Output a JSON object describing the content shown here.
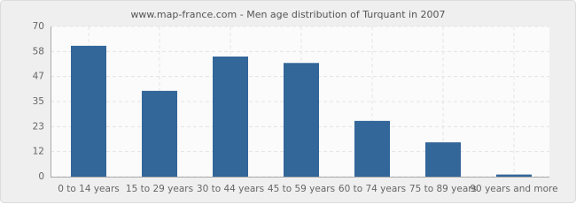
{
  "chart_data": {
    "type": "bar",
    "title": "www.map-france.com - Men age distribution of Turquant in 2007",
    "categories": [
      "0 to 14 years",
      "15 to 29 years",
      "30 to 44 years",
      "45 to 59 years",
      "60 to 74 years",
      "75 to 89 years",
      "90 years and more"
    ],
    "values": [
      61,
      40,
      56,
      53,
      26,
      16,
      1
    ],
    "color": "#336699",
    "ylim": [
      0,
      70
    ],
    "yticks": [
      0,
      {
        "value": 11.67,
        "label": "12"
      },
      {
        "value": 23.33,
        "label": "23"
      },
      35,
      {
        "value": 46.67,
        "label": "47"
      },
      {
        "value": 58.33,
        "label": "58"
      },
      70
    ],
    "grid": true
  }
}
